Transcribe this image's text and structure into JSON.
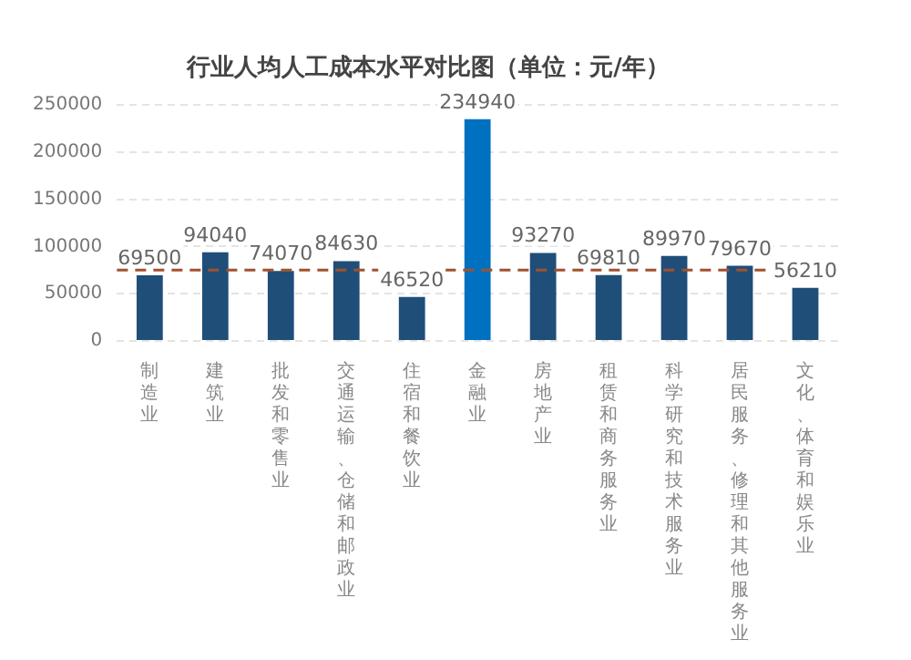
{
  "chart_data": {
    "type": "bar",
    "title": "行业人均人工成本水平对比图（单位：元/年）",
    "categories": [
      "制造业",
      "建筑业",
      "批发和零售业",
      "交通运输、仓储和邮政业",
      "住宿和餐饮业",
      "金融业",
      "房地产业",
      "租赁和商务服务业",
      "科学研究和技术服务业",
      "居民服务、修理和其他服务业",
      "文化、体育和娱乐业"
    ],
    "values": [
      69500,
      94040,
      74070,
      84630,
      46520,
      234940,
      93270,
      69810,
      89970,
      79670,
      56210
    ],
    "colors": [
      "#1f4e79",
      "#1f4e79",
      "#1f4e79",
      "#1f4e79",
      "#1f4e79",
      "#0070c0",
      "#1f4e79",
      "#1f4e79",
      "#1f4e79",
      "#1f4e79",
      "#1f4e79"
    ],
    "ylim": [
      0,
      250000
    ],
    "yticks": [
      0,
      50000,
      100000,
      150000,
      200000,
      250000
    ],
    "grid": "y",
    "data_labels": true,
    "legend": false,
    "ref_lines": [
      {
        "axis": "y",
        "value": 75000,
        "color": "#a0522d",
        "line_style": "dashed"
      }
    ]
  }
}
